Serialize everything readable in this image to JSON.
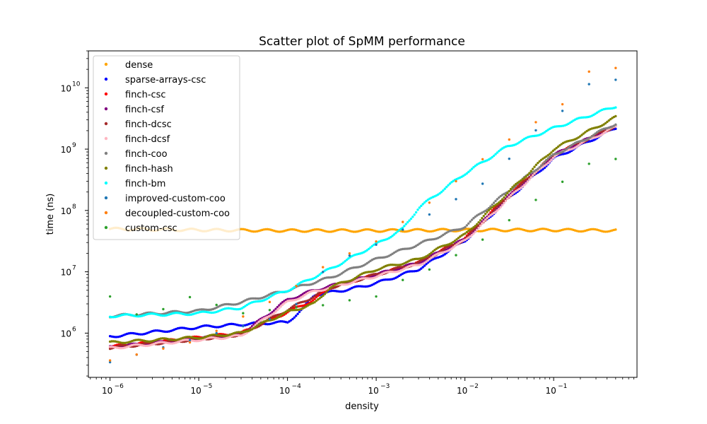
{
  "chart_data": {
    "type": "scatter",
    "title": "Scatter plot of SpMM performance",
    "xlabel": "density",
    "ylabel": "time (ns)",
    "xscale": "log",
    "yscale": "log",
    "xlim": [
      5.7e-07,
      0.87
    ],
    "ylim": [
      190000.0,
      40000000000.0
    ],
    "x_ticks": [
      {
        "value": 1e-06,
        "base": "10",
        "exp": "−6"
      },
      {
        "value": 1e-05,
        "base": "10",
        "exp": "−5"
      },
      {
        "value": 0.0001,
        "base": "10",
        "exp": "−4"
      },
      {
        "value": 0.001,
        "base": "10",
        "exp": "−3"
      },
      {
        "value": 0.01,
        "base": "10",
        "exp": "−2"
      },
      {
        "value": 0.1,
        "base": "10",
        "exp": "−1"
      }
    ],
    "y_ticks": [
      {
        "value": 1000000.0,
        "base": "10",
        "exp": "6"
      },
      {
        "value": 10000000.0,
        "base": "10",
        "exp": "7"
      },
      {
        "value": 100000000.0,
        "base": "10",
        "exp": "8"
      },
      {
        "value": 1000000000.0,
        "base": "10",
        "exp": "9"
      },
      {
        "value": 10000000000.0,
        "base": "10",
        "exp": "10"
      }
    ],
    "grid": false,
    "legend_position": "top-left",
    "x_range": [
      1e-06,
      0.5
    ],
    "series": [
      {
        "name": "dense",
        "color": "#ffa500",
        "points": 300,
        "curve": [
          [
            1e-06,
            50000000.0
          ],
          [
            1e-05,
            48000000.0
          ],
          [
            0.0001,
            47000000.0
          ],
          [
            0.001,
            47000000.0
          ],
          [
            0.01,
            48000000.0
          ],
          [
            0.1,
            48000000.0
          ],
          [
            0.5,
            47000000.0
          ]
        ]
      },
      {
        "name": "sparse-arrays-csc",
        "color": "#0000ff",
        "points": 300,
        "curve": [
          [
            1e-06,
            880000.0
          ],
          [
            1e-05,
            1250000.0
          ],
          [
            5e-05,
            1450000.0
          ],
          [
            0.0001,
            1500000.0
          ],
          [
            0.00015,
            2500000.0
          ],
          [
            0.0002,
            4200000.0
          ],
          [
            0.0005,
            5200000.0
          ],
          [
            0.001,
            6500000.0
          ],
          [
            0.003,
            11000000.0
          ],
          [
            0.01,
            32000000.0
          ],
          [
            0.03,
            150000000.0
          ],
          [
            0.1,
            700000000.0
          ],
          [
            0.5,
            2200000000.0
          ]
        ]
      },
      {
        "name": "finch-csc",
        "color": "#ff0000",
        "points": 300,
        "curve": [
          [
            1e-06,
            600000.0
          ],
          [
            1e-05,
            850000.0
          ],
          [
            3e-05,
            1000000.0
          ],
          [
            0.0001,
            2200000.0
          ],
          [
            0.0002,
            3500000.0
          ],
          [
            0.0003,
            5500000.0
          ],
          [
            0.001,
            9000000.0
          ],
          [
            0.003,
            14000000.0
          ],
          [
            0.01,
            35000000.0
          ],
          [
            0.03,
            170000000.0
          ],
          [
            0.1,
            800000000.0
          ],
          [
            0.5,
            2400000000.0
          ]
        ]
      },
      {
        "name": "finch-csf",
        "color": "#800080",
        "points": 300,
        "curve": [
          [
            1e-06,
            590000.0
          ],
          [
            1e-05,
            820000.0
          ],
          [
            3e-05,
            950000.0
          ],
          [
            0.0001,
            3500000.0
          ],
          [
            0.0002,
            5000000.0
          ],
          [
            0.001,
            9000000.0
          ],
          [
            0.003,
            14000000.0
          ],
          [
            0.01,
            34000000.0
          ],
          [
            0.03,
            160000000.0
          ],
          [
            0.1,
            800000000.0
          ],
          [
            0.5,
            2400000000.0
          ]
        ]
      },
      {
        "name": "finch-dcsc",
        "color": "#a52a2a",
        "points": 300,
        "curve": [
          [
            1e-06,
            580000.0
          ],
          [
            1e-05,
            800000.0
          ],
          [
            3e-05,
            950000.0
          ],
          [
            0.0001,
            2400000.0
          ],
          [
            0.0002,
            4000000.0
          ],
          [
            0.0003,
            5500000.0
          ],
          [
            0.001,
            9000000.0
          ],
          [
            0.003,
            14000000.0
          ],
          [
            0.01,
            34000000.0
          ],
          [
            0.03,
            160000000.0
          ],
          [
            0.1,
            800000000.0
          ],
          [
            0.5,
            2400000000.0
          ]
        ]
      },
      {
        "name": "finch-dcsf",
        "color": "#ffb6c1",
        "points": 300,
        "curve": [
          [
            1e-06,
            570000.0
          ],
          [
            1e-05,
            780000.0
          ],
          [
            3e-05,
            900000.0
          ],
          [
            0.0001,
            3200000.0
          ],
          [
            0.0002,
            4800000.0
          ],
          [
            0.001,
            8500000.0
          ],
          [
            0.003,
            13000000.0
          ],
          [
            0.01,
            32000000.0
          ],
          [
            0.03,
            150000000.0
          ],
          [
            0.1,
            750000000.0
          ],
          [
            0.5,
            2300000000.0
          ]
        ]
      },
      {
        "name": "finch-coo",
        "color": "#808080",
        "points": 300,
        "curve": [
          [
            1e-06,
            1900000.0
          ],
          [
            1e-05,
            2300000.0
          ],
          [
            3e-05,
            3200000.0
          ],
          [
            0.0001,
            5000000.0
          ],
          [
            0.0003,
            8000000.0
          ],
          [
            0.001,
            16000000.0
          ],
          [
            0.003,
            28000000.0
          ],
          [
            0.01,
            55000000.0
          ],
          [
            0.03,
            200000000.0
          ],
          [
            0.1,
            800000000.0
          ],
          [
            0.5,
            2600000000.0
          ]
        ]
      },
      {
        "name": "finch-hash",
        "color": "#808000",
        "points": 300,
        "curve": [
          [
            1e-06,
            700000.0
          ],
          [
            1e-05,
            850000.0
          ],
          [
            3e-05,
            1000000.0
          ],
          [
            0.0001,
            2200000.0
          ],
          [
            0.0002,
            3000000.0
          ],
          [
            0.0003,
            5500000.0
          ],
          [
            0.001,
            11000000.0
          ],
          [
            0.003,
            16000000.0
          ],
          [
            0.01,
            40000000.0
          ],
          [
            0.03,
            190000000.0
          ],
          [
            0.1,
            1000000000.0
          ],
          [
            0.5,
            3300000000.0
          ]
        ]
      },
      {
        "name": "finch-bm",
        "color": "#00ffff",
        "points": 300,
        "curve": [
          [
            1e-06,
            1900000.0
          ],
          [
            1e-05,
            2100000.0
          ],
          [
            3e-05,
            2600000.0
          ],
          [
            0.0001,
            5000000.0
          ],
          [
            0.0003,
            11000000.0
          ],
          [
            0.001,
            28000000.0
          ],
          [
            0.002,
            50000000.0
          ],
          [
            0.003,
            110000000.0
          ],
          [
            0.01,
            400000000.0
          ],
          [
            0.03,
            1100000000.0
          ],
          [
            0.1,
            2200000000.0
          ],
          [
            0.5,
            5000000000.0
          ]
        ]
      },
      {
        "name": "improved-custom-coo",
        "color": "#1f77b4",
        "points": 20,
        "curve": [
          [
            1e-06,
            330000.0
          ],
          [
            1e-05,
            800000.0
          ],
          [
            0.0001,
            2000000.0
          ],
          [
            0.0003,
            14000000.0
          ],
          [
            0.001,
            29000000.0
          ],
          [
            0.0046,
            100000000.0
          ],
          [
            0.02,
            330000000.0
          ],
          [
            0.06,
            1900000000.0
          ],
          [
            0.1,
            2600000000.0
          ],
          [
            0.18,
            8000000000.0
          ],
          [
            0.3,
            13000000000.0
          ]
        ]
      },
      {
        "name": "decoupled-custom-coo",
        "color": "#ff7f0e",
        "points": 20,
        "curve": [
          [
            1e-06,
            360000.0
          ],
          [
            1e-05,
            800000.0
          ],
          [
            0.0001,
            4700000.0
          ],
          [
            0.0003,
            14000000.0
          ],
          [
            0.001,
            30000000.0
          ],
          [
            0.0046,
            150000000.0
          ],
          [
            0.02,
            900000000.0
          ],
          [
            0.06,
            2800000000.0
          ],
          [
            0.1,
            3000000000.0
          ],
          [
            0.18,
            15000000000.0
          ],
          [
            0.3,
            22000000000.0
          ]
        ]
      },
      {
        "name": "custom-csc",
        "color": "#2ca02c",
        "points": 20,
        "curve": [
          [
            1e-06,
            4000000.0
          ],
          [
            1.7e-06,
            2000000.0
          ],
          [
            3e-06,
            2000000.0
          ],
          [
            1e-05,
            4300000.0
          ],
          [
            2e-05,
            2200000.0
          ],
          [
            3e-05,
            2000000.0
          ],
          [
            0.0001,
            2500000.0
          ],
          [
            0.00028,
            2900000.0
          ],
          [
            0.0005,
            3500000.0
          ],
          [
            0.001,
            4100000.0
          ],
          [
            0.0026,
            9800000.0
          ],
          [
            0.0046,
            12000000.0
          ],
          [
            0.0077,
            19000000.0
          ],
          [
            0.013,
            28000000.0
          ],
          [
            0.021,
            46000000.0
          ],
          [
            0.036,
            80000000.0
          ],
          [
            0.06,
            140000000.0
          ],
          [
            0.1,
            230000000.0
          ],
          [
            0.18,
            400000000.0
          ],
          [
            0.3,
            660000000.0
          ]
        ]
      }
    ]
  }
}
